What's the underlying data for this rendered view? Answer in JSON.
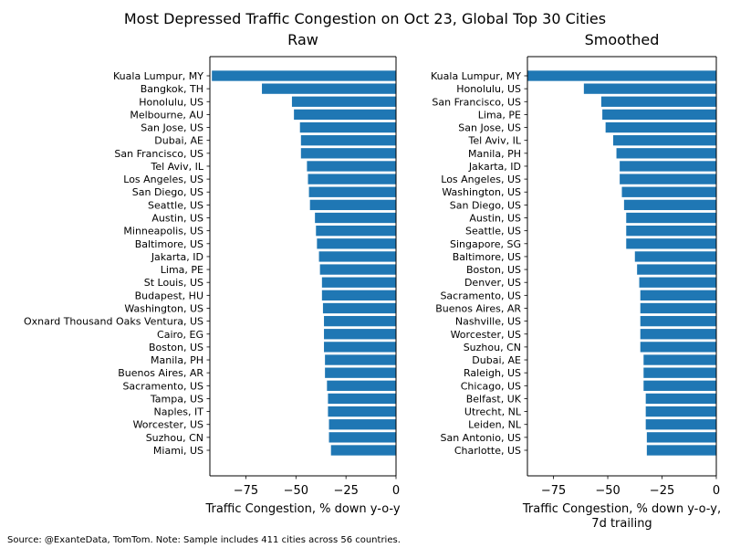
{
  "figure": {
    "suptitle": "Most Depressed Traffic Congestion on Oct 23, Global Top 30 Cities",
    "footnote": "Source: @ExanteData, TomTom.   Note: Sample includes 411 cities across 56 countries."
  },
  "colors": {
    "bar": "#1f77b4",
    "axis": "#000000",
    "background": "#ffffff"
  },
  "chart_data": [
    {
      "type": "bar",
      "orientation": "horizontal",
      "title": "Raw",
      "xlabel": "Traffic Congestion, % down y-o-y",
      "ylabel": "",
      "xlim": [
        -93,
        0
      ],
      "xticks": [
        -75,
        -50,
        -25,
        0
      ],
      "xtick_labels": [
        "−75",
        "−50",
        "−25",
        "0"
      ],
      "grid": false,
      "categories": [
        "Kuala Lumpur, MY",
        "Bangkok, TH",
        "Honolulu, US",
        "Melbourne, AU",
        "San Jose, US",
        "Dubai, AE",
        "San Francisco, US",
        "Tel Aviv, IL",
        "Los Angeles, US",
        "San Diego, US",
        "Seattle, US",
        "Austin, US",
        "Minneapolis, US",
        "Baltimore, US",
        "Jakarta, ID",
        "Lima, PE",
        "St Louis, US",
        "Budapest, HU",
        "Washington, US",
        "Oxnard Thousand Oaks Ventura, US",
        "Cairo, EG",
        "Boston, US",
        "Manila, PH",
        "Buenos Aires, AR",
        "Sacramento, US",
        "Tampa, US",
        "Naples, IT",
        "Worcester, US",
        "Suzhou, CN",
        "Miami, US"
      ],
      "values": [
        -92,
        -67,
        -52,
        -51,
        -48,
        -47.5,
        -47.5,
        -44.5,
        -44,
        -43.5,
        -43,
        -40.5,
        -40,
        -39.5,
        -38.5,
        -38,
        -37,
        -37,
        -36.5,
        -36,
        -36,
        -36,
        -35.5,
        -35.5,
        -34.5,
        -34,
        -34,
        -33.5,
        -33.5,
        -32.5
      ]
    },
    {
      "type": "bar",
      "orientation": "horizontal",
      "title": "Smoothed",
      "xlabel": "Traffic Congestion, % down y-o-y,",
      "xlabel2": "7d trailing",
      "ylabel": "",
      "xlim": [
        -87,
        0
      ],
      "xticks": [
        -75,
        -50,
        -25,
        0
      ],
      "xtick_labels": [
        "−75",
        "−50",
        "−25",
        "0"
      ],
      "grid": false,
      "categories": [
        "Kuala Lumpur, MY",
        "Honolulu, US",
        "San Francisco, US",
        "Lima, PE",
        "San Jose, US",
        "Tel Aviv, IL",
        "Manila, PH",
        "Jakarta, ID",
        "Los Angeles, US",
        "Washington, US",
        "San Diego, US",
        "Austin, US",
        "Seattle, US",
        "Singapore, SG",
        "Baltimore, US",
        "Boston, US",
        "Denver, US",
        "Sacramento, US",
        "Buenos Aires, AR",
        "Nashville, US",
        "Worcester, US",
        "Suzhou, CN",
        "Dubai, AE",
        "Raleigh, US",
        "Chicago, US",
        "Belfast, UK",
        "Utrecht, NL",
        "Leiden, NL",
        "San Antonio, US",
        "Charlotte, US"
      ],
      "values": [
        -87,
        -61,
        -53,
        -52.5,
        -51,
        -47.5,
        -46,
        -44.5,
        -44.5,
        -43.5,
        -42.5,
        -41.5,
        -41.5,
        -41.5,
        -37.5,
        -36.5,
        -35.5,
        -35,
        -35,
        -35,
        -35,
        -35,
        -33.5,
        -33.5,
        -33.5,
        -32.5,
        -32.5,
        -32.5,
        -32,
        -32
      ]
    }
  ]
}
